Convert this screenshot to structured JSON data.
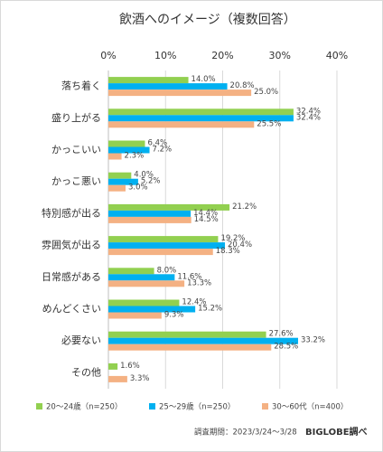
{
  "chart_data": {
    "type": "hbar",
    "title": "飲酒へのイメージ（複数回答）",
    "categories": [
      "落ち着く",
      "盛り上がる",
      "かっこいい",
      "かっこ悪い",
      "特別感が出る",
      "雰囲気が出る",
      "日常感がある",
      "めんどくさい",
      "必要ない",
      "その他"
    ],
    "series": [
      {
        "name": "20～24歳（n=250）",
        "color": "#92d050",
        "values": [
          14.0,
          32.4,
          6.4,
          4.0,
          21.2,
          19.2,
          8.0,
          12.4,
          27.6,
          1.6
        ],
        "value_labels": [
          "14.0%",
          "32.4%",
          "6.4%",
          "4.0%",
          "21.2%",
          "19.2%",
          "8.0%",
          "12.4%",
          "27.6%",
          "1.6%"
        ]
      },
      {
        "name": "25～29歳（n=250）",
        "color": "#00b0f0",
        "values": [
          20.8,
          32.4,
          7.2,
          5.2,
          14.4,
          20.4,
          11.6,
          15.2,
          33.2,
          null
        ],
        "value_labels": [
          "20.8%",
          "32.4%",
          "7.2%",
          "5.2%",
          "14.4%",
          "20.4%",
          "11.6%",
          "15.2%",
          "33.2%",
          null
        ]
      },
      {
        "name": "30～60代（n=400）",
        "color": "#f4b183",
        "values": [
          25.0,
          25.5,
          2.3,
          3.0,
          14.5,
          18.3,
          13.3,
          9.3,
          28.5,
          3.3
        ],
        "value_labels": [
          "25.0%",
          "25.5%",
          "2.3%",
          "3.0%",
          "14.5%",
          "18.3%",
          "13.3%",
          "9.3%",
          "28.5%",
          "3.3%"
        ]
      }
    ],
    "xlim": [
      0,
      40
    ],
    "xticks": [
      {
        "value": 0,
        "label": "0%"
      },
      {
        "value": 10,
        "label": "10%"
      },
      {
        "value": 20,
        "label": "20%"
      },
      {
        "value": 30,
        "label": "30%"
      },
      {
        "value": 40,
        "label": "40%"
      }
    ],
    "grid": true,
    "note": "調査期間：2023/3/24～3/28",
    "source": "BIGLOBE調べ"
  }
}
